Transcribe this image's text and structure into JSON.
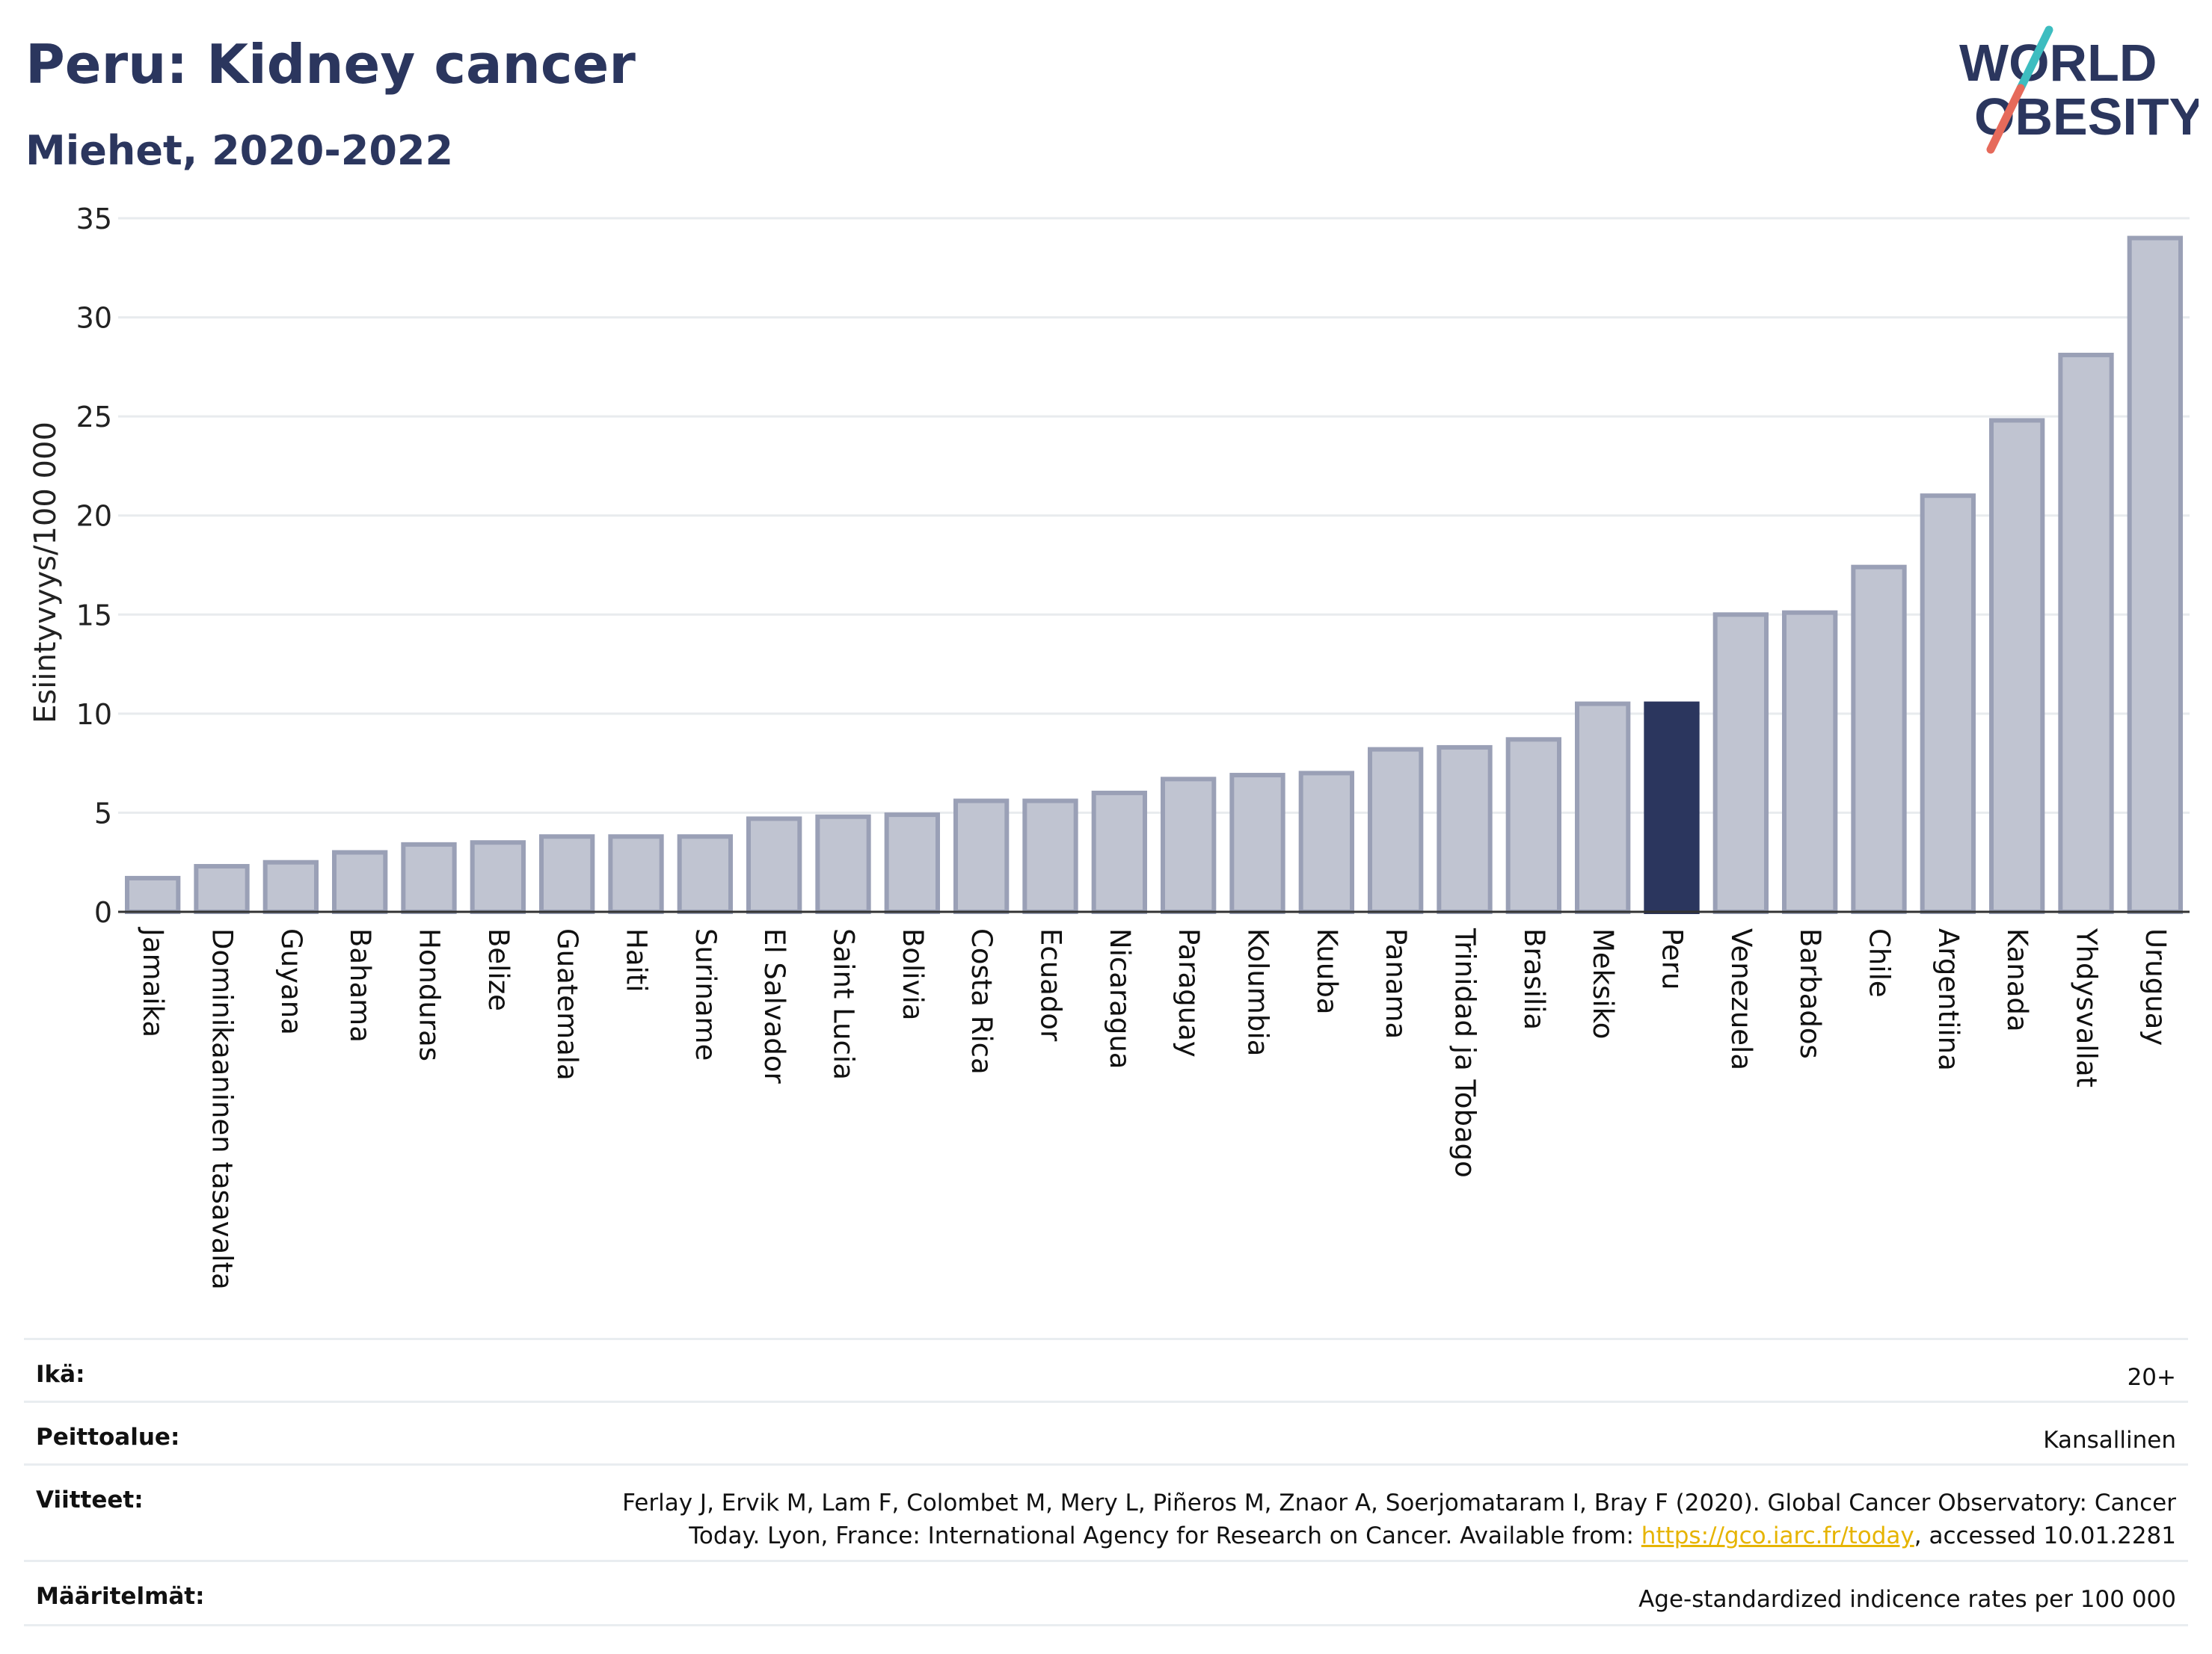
{
  "header": {
    "title": "Peru: Kidney cancer",
    "subtitle": "Miehet, 2020-2022"
  },
  "logo": {
    "line1": "WORLD",
    "line2": "OBESITY",
    "accent_teal": "#3dbdc0",
    "accent_coral": "#e66a5b",
    "text_color": "#2b365e"
  },
  "colors": {
    "bar": "#c0c4d1",
    "bar_stroke": "#9aa0b6",
    "highlight": "#2b365e",
    "grid": "#e8ebee"
  },
  "chart_data": {
    "type": "bar",
    "ylabel": "Esiintyvyys/100 000",
    "ylim": [
      0,
      35
    ],
    "yticks": [
      0,
      5,
      10,
      15,
      20,
      25,
      30,
      35
    ],
    "grid": true,
    "highlight": "Peru",
    "categories": [
      "Jamaika",
      "Dominikaaninen tasavalta",
      "Guyana",
      "Bahama",
      "Honduras",
      "Belize",
      "Guatemala",
      "Haiti",
      "Suriname",
      "El Salvador",
      "Saint Lucia",
      "Bolivia",
      "Costa Rica",
      "Ecuador",
      "Nicaragua",
      "Paraguay",
      "Kolumbia",
      "Kuuba",
      "Panama",
      "Trinidad ja Tobago",
      "Brasilia",
      "Meksiko",
      "Peru",
      "Venezuela",
      "Barbados",
      "Chile",
      "Argentiina",
      "Kanada",
      "Yhdysvallat",
      "Uruguay"
    ],
    "values": [
      1.7,
      2.3,
      2.5,
      3.0,
      3.4,
      3.5,
      3.8,
      3.8,
      3.8,
      4.7,
      4.8,
      4.9,
      5.6,
      5.6,
      6.0,
      6.7,
      6.9,
      7.0,
      8.2,
      8.3,
      8.7,
      10.5,
      10.5,
      15.0,
      15.1,
      17.4,
      21.0,
      24.8,
      28.1,
      34.0
    ]
  },
  "footer": {
    "rows": [
      {
        "label": "Ikä:",
        "value": "20+"
      },
      {
        "label": "Peittoalue:",
        "value": "Kansallinen"
      },
      {
        "label": "Viitteet:",
        "value_line1": "Ferlay J, Ervik M, Lam F, Colombet M, Mery L, Piñeros M, Znaor A, Soerjomataram I, Bray F (2020). Global Cancer Observatory: Cancer",
        "value_line2_pre": "Today. Lyon, France: International Agency for Research on Cancer. Available from: ",
        "link": "https://gco.iarc.fr/today",
        "value_line2_post": ", accessed 10.01.2281"
      },
      {
        "label": "Määritelmät:",
        "value": "Age-standardized indicence rates per 100 000"
      }
    ]
  }
}
